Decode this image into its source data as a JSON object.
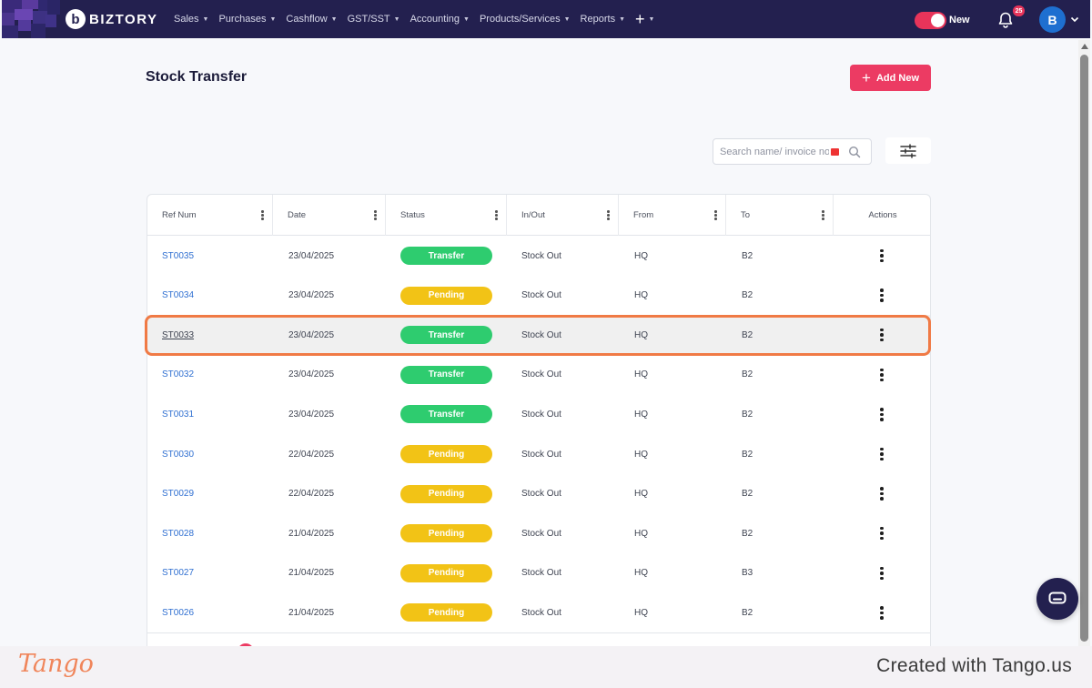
{
  "nav": {
    "brand": "BIZTORY",
    "brand_mark": "b",
    "items": [
      {
        "label": "Sales"
      },
      {
        "label": "Purchases"
      },
      {
        "label": "Cashflow"
      },
      {
        "label": "GST/SST"
      },
      {
        "label": "Accounting"
      },
      {
        "label": "Products/Services"
      },
      {
        "label": "Reports"
      }
    ],
    "plus_label": "+",
    "toggle_label": "New",
    "notification_count": "25",
    "avatar_initial": "B"
  },
  "page": {
    "title": "Stock Transfer",
    "add_button_label": "Add New",
    "search_placeholder": "Search name/ invoice no"
  },
  "table": {
    "columns": [
      "Ref Num",
      "Date",
      "Status",
      "In/Out",
      "From",
      "To",
      "Actions"
    ],
    "rows": [
      {
        "ref": "ST0035",
        "date": "23/04/2025",
        "status": "Transfer",
        "inout": "Stock Out",
        "from": "HQ",
        "to": "B2"
      },
      {
        "ref": "ST0034",
        "date": "23/04/2025",
        "status": "Pending",
        "inout": "Stock Out",
        "from": "HQ",
        "to": "B2"
      },
      {
        "ref": "ST0033",
        "date": "23/04/2025",
        "status": "Transfer",
        "inout": "Stock Out",
        "from": "HQ",
        "to": "B2"
      },
      {
        "ref": "ST0032",
        "date": "23/04/2025",
        "status": "Transfer",
        "inout": "Stock Out",
        "from": "HQ",
        "to": "B2"
      },
      {
        "ref": "ST0031",
        "date": "23/04/2025",
        "status": "Transfer",
        "inout": "Stock Out",
        "from": "HQ",
        "to": "B2"
      },
      {
        "ref": "ST0030",
        "date": "22/04/2025",
        "status": "Pending",
        "inout": "Stock Out",
        "from": "HQ",
        "to": "B2"
      },
      {
        "ref": "ST0029",
        "date": "22/04/2025",
        "status": "Pending",
        "inout": "Stock Out",
        "from": "HQ",
        "to": "B2"
      },
      {
        "ref": "ST0028",
        "date": "21/04/2025",
        "status": "Pending",
        "inout": "Stock Out",
        "from": "HQ",
        "to": "B2"
      },
      {
        "ref": "ST0027",
        "date": "21/04/2025",
        "status": "Pending",
        "inout": "Stock Out",
        "from": "HQ",
        "to": "B3"
      },
      {
        "ref": "ST0026",
        "date": "21/04/2025",
        "status": "Pending",
        "inout": "Stock Out",
        "from": "HQ",
        "to": "B2"
      }
    ],
    "highlighted_ref": "ST0033"
  },
  "colors": {
    "nav_bg": "#23204f",
    "accent": "#ec3b63",
    "transfer": "#2ecc6f",
    "pending": "#f2c316",
    "link": "#2f6fd1",
    "highlight_ring": "#f07a45"
  },
  "icons": {
    "bell": "bell-icon",
    "search": "search-icon",
    "filter": "sliders-icon",
    "chat": "chat-icon",
    "row_actions": "kebab-menu-icon"
  },
  "footer": {
    "tango_logo": "Tango",
    "credit": "Created with Tango.us"
  }
}
